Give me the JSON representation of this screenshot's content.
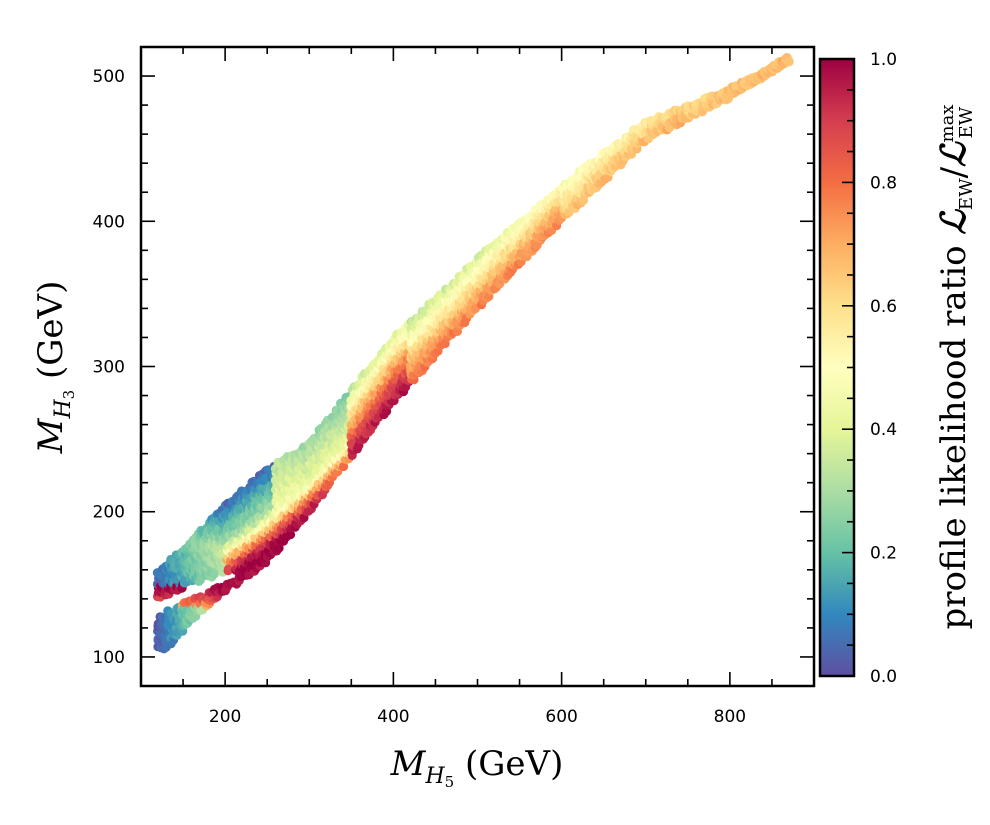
{
  "chart_data": {
    "type": "scatter",
    "subtype": "hexbin-density",
    "title": "",
    "xlabel": "M_{H_5} (GeV)",
    "xlabel_parts": {
      "main": "M",
      "sub": "H",
      "subsub": "5",
      "unit": " (GeV)"
    },
    "ylabel": "M_{H_3} (GeV)",
    "ylabel_parts": {
      "main": "M",
      "sub": "H",
      "subsub": "3",
      "unit": " (GeV)"
    },
    "xlim": [
      100,
      900
    ],
    "ylim": [
      80,
      520
    ],
    "x_major_ticks": [
      200,
      400,
      600,
      800
    ],
    "x_minor_step": 50,
    "y_major_ticks": [
      100,
      200,
      300,
      400,
      500
    ],
    "y_minor_step": 20,
    "grid": false,
    "colorbar": {
      "label": "profile likelihood ratio L_EW / L_EW^max",
      "label_parts": {
        "prefix": "profile likelihood ratio ",
        "L": "ℒ",
        "sub": "EW",
        "slash": "/",
        "sup": "max"
      },
      "range": [
        0.0,
        1.0
      ],
      "ticks": [
        "0.0",
        "0.2",
        "0.4",
        "0.6",
        "0.8",
        "1.0"
      ],
      "tick_values": [
        0.0,
        0.2,
        0.4,
        0.6,
        0.8,
        1.0
      ],
      "minor_step": 0.05,
      "colormap": "Spectral_r",
      "colormap_stops": [
        "#5e4fa2",
        "#3288bd",
        "#66c2a5",
        "#abdda4",
        "#e6f598",
        "#ffffbf",
        "#fee08b",
        "#fdae61",
        "#f46d43",
        "#d53e4f",
        "#9e0142"
      ]
    },
    "band_description": "Points populate a narrow diagonal band from (120,105) to (870,510); highest likelihood ridge near M_H5≈250-350, M_H3≈170-220; low-likelihood blue region at M_H5≈120-200, M_H3≈110-205.",
    "band_lower_edge": [
      [
        130,
        105
      ],
      [
        160,
        125
      ],
      [
        200,
        145
      ],
      [
        250,
        165
      ],
      [
        300,
        200
      ],
      [
        400,
        275
      ],
      [
        500,
        340
      ],
      [
        600,
        400
      ],
      [
        700,
        455
      ],
      [
        800,
        485
      ],
      [
        870,
        510
      ]
    ],
    "band_upper_edge": [
      [
        120,
        160
      ],
      [
        150,
        175
      ],
      [
        200,
        205
      ],
      [
        250,
        230
      ],
      [
        300,
        248
      ],
      [
        400,
        320
      ],
      [
        500,
        375
      ],
      [
        600,
        425
      ],
      [
        700,
        470
      ],
      [
        750,
        480
      ],
      [
        870,
        510
      ]
    ],
    "ridge": [
      [
        200,
        150
      ],
      [
        250,
        170
      ],
      [
        300,
        195
      ],
      [
        350,
        225
      ],
      [
        400,
        265
      ],
      [
        500,
        325
      ],
      [
        600,
        385
      ],
      [
        700,
        440
      ],
      [
        800,
        480
      ],
      [
        870,
        510
      ]
    ],
    "samples": [
      {
        "x": 130,
        "y": 110,
        "v": 0.03
      },
      {
        "x": 128,
        "y": 125,
        "v": 0.04
      },
      {
        "x": 140,
        "y": 120,
        "v": 0.08
      },
      {
        "x": 155,
        "y": 128,
        "v": 0.2
      },
      {
        "x": 175,
        "y": 135,
        "v": 0.35
      },
      {
        "x": 200,
        "y": 145,
        "v": 0.5
      },
      {
        "x": 125,
        "y": 150,
        "v": 0.02
      },
      {
        "x": 130,
        "y": 158,
        "v": 0.01
      },
      {
        "x": 150,
        "y": 165,
        "v": 0.04
      },
      {
        "x": 170,
        "y": 180,
        "v": 0.07
      },
      {
        "x": 190,
        "y": 195,
        "v": 0.08
      },
      {
        "x": 210,
        "y": 200,
        "v": 0.1
      },
      {
        "x": 200,
        "y": 175,
        "v": 0.2
      },
      {
        "x": 220,
        "y": 185,
        "v": 0.3
      },
      {
        "x": 240,
        "y": 200,
        "v": 0.3
      },
      {
        "x": 260,
        "y": 220,
        "v": 0.35
      },
      {
        "x": 230,
        "y": 165,
        "v": 0.7
      },
      {
        "x": 260,
        "y": 175,
        "v": 0.9
      },
      {
        "x": 290,
        "y": 190,
        "v": 0.98
      },
      {
        "x": 320,
        "y": 210,
        "v": 0.95
      },
      {
        "x": 350,
        "y": 230,
        "v": 0.85
      },
      {
        "x": 280,
        "y": 165,
        "v": 0.55
      },
      {
        "x": 300,
        "y": 215,
        "v": 0.6
      },
      {
        "x": 340,
        "y": 245,
        "v": 0.45
      },
      {
        "x": 400,
        "y": 265,
        "v": 0.8
      },
      {
        "x": 420,
        "y": 300,
        "v": 0.45
      },
      {
        "x": 450,
        "y": 300,
        "v": 0.72
      },
      {
        "x": 500,
        "y": 330,
        "v": 0.72
      },
      {
        "x": 520,
        "y": 360,
        "v": 0.5
      },
      {
        "x": 600,
        "y": 390,
        "v": 0.7
      },
      {
        "x": 620,
        "y": 420,
        "v": 0.5
      },
      {
        "x": 700,
        "y": 445,
        "v": 0.68
      },
      {
        "x": 720,
        "y": 470,
        "v": 0.45
      },
      {
        "x": 800,
        "y": 480,
        "v": 0.66
      },
      {
        "x": 870,
        "y": 510,
        "v": 0.66
      }
    ]
  }
}
